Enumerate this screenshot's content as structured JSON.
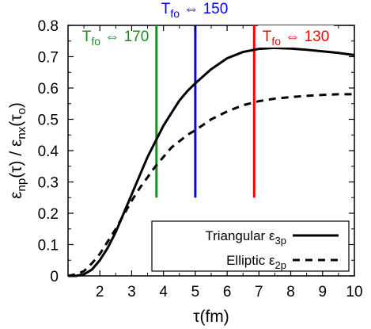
{
  "chart_data": {
    "type": "line",
    "xlabel": "τ(fm)",
    "ylabel": "εnp(τ) / εnx(τo)",
    "xlim": [
      1,
      10
    ],
    "ylim": [
      0,
      0.8
    ],
    "x_ticks": [
      "2",
      "3",
      "4",
      "5",
      "6",
      "7",
      "8",
      "9",
      "10"
    ],
    "y_ticks": [
      "0",
      "0.1",
      "0.2",
      "0.3",
      "0.4",
      "0.5",
      "0.6",
      "0.7",
      "0.8"
    ],
    "series": [
      {
        "name": "Triangular ε3p",
        "style": "solid",
        "color": "#000000",
        "x": [
          1.0,
          1.25,
          1.5,
          1.75,
          2.0,
          2.25,
          2.5,
          2.75,
          3.0,
          3.25,
          3.5,
          3.75,
          4.0,
          4.25,
          4.5,
          4.75,
          5.0,
          5.5,
          6.0,
          6.5,
          7.0,
          7.5,
          8.0,
          8.5,
          9.0,
          9.5,
          10.0
        ],
        "y": [
          0.0,
          0.0,
          0.005,
          0.02,
          0.05,
          0.09,
          0.14,
          0.2,
          0.26,
          0.32,
          0.38,
          0.43,
          0.48,
          0.52,
          0.56,
          0.59,
          0.615,
          0.66,
          0.695,
          0.715,
          0.725,
          0.728,
          0.726,
          0.722,
          0.717,
          0.712,
          0.705
        ]
      },
      {
        "name": "Elliptic ε2p",
        "style": "dashed",
        "color": "#000000",
        "x": [
          1.0,
          1.25,
          1.5,
          1.75,
          2.0,
          2.25,
          2.5,
          2.75,
          3.0,
          3.25,
          3.5,
          3.75,
          4.0,
          4.25,
          4.5,
          4.75,
          5.0,
          5.5,
          6.0,
          6.5,
          7.0,
          7.5,
          8.0,
          8.5,
          9.0,
          9.5,
          10.0
        ],
        "y": [
          0.0,
          0.005,
          0.015,
          0.04,
          0.07,
          0.11,
          0.15,
          0.195,
          0.24,
          0.28,
          0.315,
          0.35,
          0.38,
          0.41,
          0.43,
          0.45,
          0.465,
          0.5,
          0.525,
          0.545,
          0.558,
          0.566,
          0.571,
          0.575,
          0.578,
          0.58,
          0.58
        ]
      }
    ],
    "vlines": [
      {
        "x": 3.78,
        "color": "#1e8c1e",
        "label": "T",
        "sub": "fo",
        "text": " ⇔ 170"
      },
      {
        "x": 5.0,
        "color": "#0000ff",
        "label": "T",
        "sub": "fo",
        "text": " ⇔ 150"
      },
      {
        "x": 6.85,
        "color": "#ff0000",
        "label": "T",
        "sub": "fo",
        "text": " ⇔ 130"
      }
    ],
    "legend": {
      "placement": "bottom-right",
      "entries": [
        {
          "text": "Triangular ε",
          "sub": "3p",
          "style": "solid"
        },
        {
          "text": "Elliptic ε",
          "sub": "2p",
          "style": "dashed"
        }
      ]
    }
  }
}
